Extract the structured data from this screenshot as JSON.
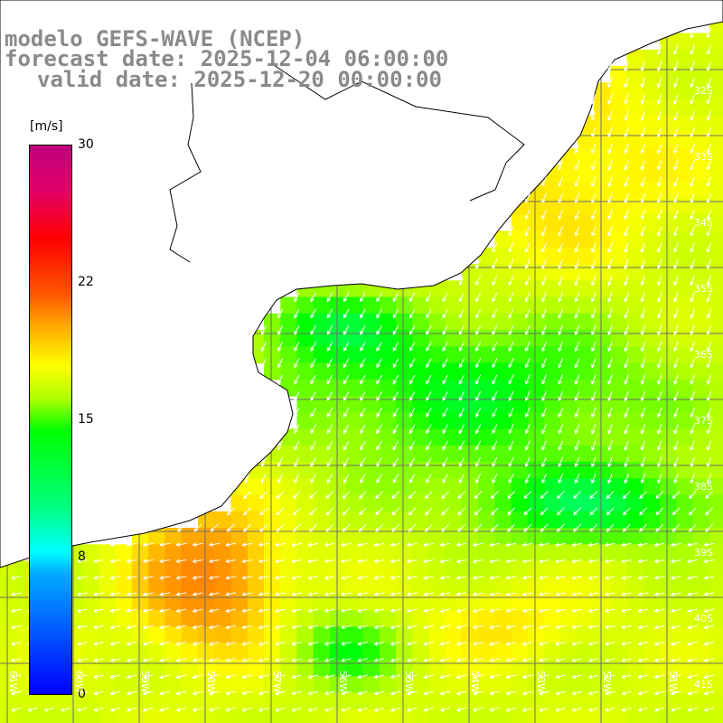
{
  "header": {
    "line1": "modelo GEFS-WAVE (NCEP)",
    "line2": "forecast date: 2025-12-04 06:00:00",
    "line3": "valid date: 2025-12-20 00:00:00"
  },
  "colorbar": {
    "unit": "[m/s]",
    "min": 0,
    "max": 30,
    "ticks": [
      "30",
      "22",
      "15",
      "8",
      "0"
    ],
    "colors": [
      "#0000ff",
      "#00aaff",
      "#00ffff",
      "#00ff80",
      "#00ff00",
      "#b0ff00",
      "#ffff00",
      "#ffaa00",
      "#ff5500",
      "#ff0000",
      "#c0007f"
    ]
  },
  "map": {
    "land_color": "#ffffff",
    "coast_color": "#000000",
    "grid_color": "#6e6e6e",
    "arrow_color": "#ffffff",
    "longitude_labels": [
      "61W",
      "60W",
      "59W",
      "58W",
      "57W",
      "56W",
      "55W",
      "54W",
      "53W",
      "52W",
      "51W"
    ],
    "latitude_labels": [
      "32S",
      "33S",
      "34S",
      "35S",
      "36S",
      "37S",
      "38S",
      "39S",
      "40S",
      "41S"
    ]
  }
}
